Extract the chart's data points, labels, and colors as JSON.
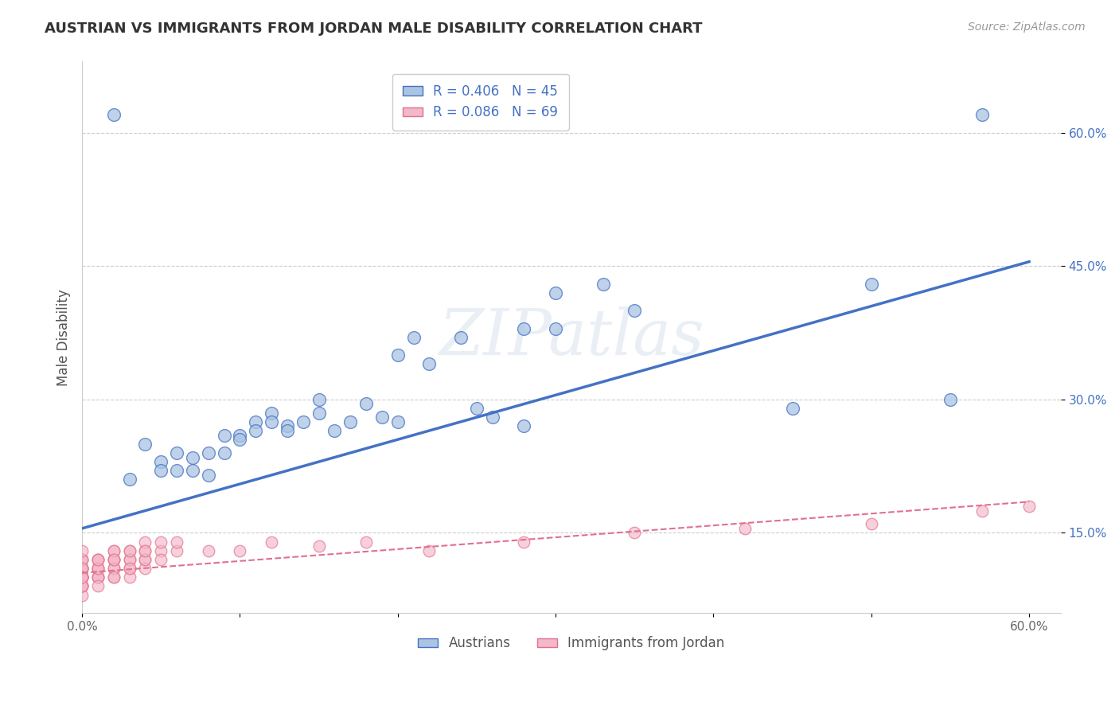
{
  "title": "AUSTRIAN VS IMMIGRANTS FROM JORDAN MALE DISABILITY CORRELATION CHART",
  "source": "Source: ZipAtlas.com",
  "ylabel": "Male Disability",
  "xlim": [
    0.0,
    0.62
  ],
  "ylim": [
    0.06,
    0.68
  ],
  "xticks": [
    0.0,
    0.1,
    0.2,
    0.3,
    0.4,
    0.5,
    0.6
  ],
  "xticklabels": [
    "0.0%",
    "",
    "",
    "",
    "",
    "",
    "60.0%"
  ],
  "yticks": [
    0.15,
    0.3,
    0.45,
    0.6
  ],
  "yticklabels": [
    "15.0%",
    "30.0%",
    "45.0%",
    "60.0%"
  ],
  "blue_color": "#aac4e2",
  "blue_line_color": "#4472c4",
  "pink_color": "#f4b8c8",
  "pink_line_color": "#e07090",
  "legend_label_blue": "Austrians",
  "legend_label_pink": "Immigrants from Jordan",
  "watermark": "ZIPatlas",
  "blue_scatter_x": [
    0.02,
    0.03,
    0.04,
    0.05,
    0.05,
    0.06,
    0.06,
    0.07,
    0.07,
    0.08,
    0.08,
    0.09,
    0.09,
    0.1,
    0.1,
    0.11,
    0.11,
    0.12,
    0.12,
    0.13,
    0.13,
    0.14,
    0.15,
    0.15,
    0.16,
    0.17,
    0.18,
    0.19,
    0.2,
    0.21,
    0.22,
    0.24,
    0.26,
    0.28,
    0.3,
    0.33,
    0.28,
    0.3,
    0.45,
    0.5,
    0.55,
    0.57,
    0.2,
    0.25,
    0.35
  ],
  "blue_scatter_y": [
    0.62,
    0.21,
    0.25,
    0.23,
    0.22,
    0.24,
    0.22,
    0.235,
    0.22,
    0.24,
    0.215,
    0.26,
    0.24,
    0.26,
    0.255,
    0.275,
    0.265,
    0.285,
    0.275,
    0.27,
    0.265,
    0.275,
    0.285,
    0.3,
    0.265,
    0.275,
    0.295,
    0.28,
    0.275,
    0.37,
    0.34,
    0.37,
    0.28,
    0.38,
    0.42,
    0.43,
    0.27,
    0.38,
    0.29,
    0.43,
    0.3,
    0.62,
    0.35,
    0.29,
    0.4
  ],
  "pink_scatter_x": [
    0.0,
    0.0,
    0.0,
    0.0,
    0.0,
    0.0,
    0.0,
    0.0,
    0.0,
    0.0,
    0.0,
    0.0,
    0.0,
    0.0,
    0.0,
    0.0,
    0.0,
    0.0,
    0.0,
    0.0,
    0.01,
    0.01,
    0.01,
    0.01,
    0.01,
    0.01,
    0.01,
    0.01,
    0.01,
    0.01,
    0.02,
    0.02,
    0.02,
    0.02,
    0.02,
    0.02,
    0.02,
    0.02,
    0.02,
    0.03,
    0.03,
    0.03,
    0.03,
    0.03,
    0.03,
    0.03,
    0.04,
    0.04,
    0.04,
    0.04,
    0.04,
    0.04,
    0.05,
    0.05,
    0.05,
    0.06,
    0.06,
    0.08,
    0.1,
    0.12,
    0.15,
    0.18,
    0.22,
    0.28,
    0.35,
    0.42,
    0.5,
    0.57,
    0.6
  ],
  "pink_scatter_y": [
    0.09,
    0.1,
    0.11,
    0.12,
    0.1,
    0.11,
    0.09,
    0.12,
    0.1,
    0.11,
    0.1,
    0.08,
    0.09,
    0.11,
    0.1,
    0.12,
    0.09,
    0.11,
    0.13,
    0.1,
    0.1,
    0.11,
    0.12,
    0.1,
    0.11,
    0.1,
    0.12,
    0.11,
    0.09,
    0.12,
    0.11,
    0.12,
    0.1,
    0.13,
    0.12,
    0.11,
    0.1,
    0.13,
    0.12,
    0.12,
    0.11,
    0.13,
    0.12,
    0.1,
    0.11,
    0.13,
    0.12,
    0.13,
    0.11,
    0.14,
    0.12,
    0.13,
    0.13,
    0.14,
    0.12,
    0.13,
    0.14,
    0.13,
    0.13,
    0.14,
    0.135,
    0.14,
    0.13,
    0.14,
    0.15,
    0.155,
    0.16,
    0.175,
    0.18
  ]
}
